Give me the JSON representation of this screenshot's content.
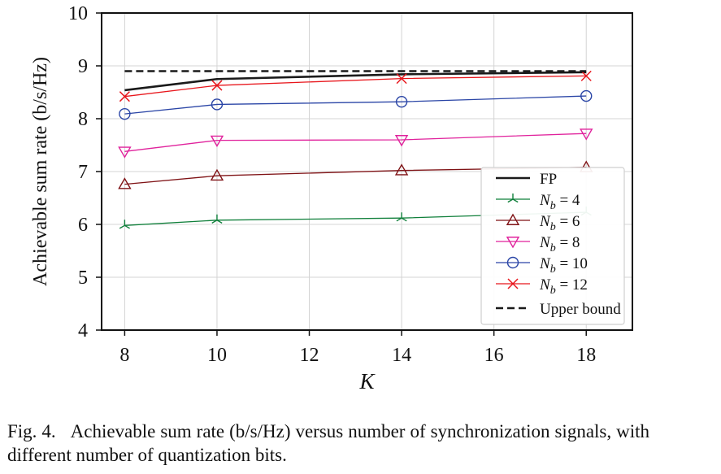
{
  "chart_data": {
    "type": "line",
    "xlabel": "K",
    "ylabel": "Achievable sum rate (b/s/Hz)",
    "xlim": [
      7.5,
      19.0
    ],
    "ylim": [
      4,
      10
    ],
    "xticks": [
      8,
      10,
      12,
      14,
      16,
      18
    ],
    "yticks": [
      4,
      5,
      6,
      7,
      8,
      9,
      10
    ],
    "grid": true,
    "legend_position": "lower-right",
    "x": [
      8,
      10,
      14,
      18
    ],
    "series": [
      {
        "name": "FP",
        "key": "fp",
        "values": [
          8.54,
          8.75,
          8.84,
          8.88
        ],
        "color": "#1a1a1a",
        "marker": "none",
        "dash": "solid",
        "width": 2.6
      },
      {
        "name": "N_b = 4",
        "key": "nb4",
        "sub": "b",
        "label_rest": " = 4",
        "values": [
          5.98,
          6.08,
          6.12,
          6.23
        ],
        "color": "#0f7f3a",
        "marker": "tri_up",
        "dash": "solid",
        "width": 1.3
      },
      {
        "name": "N_b = 6",
        "key": "nb6",
        "sub": "b",
        "label_rest": " = 6",
        "values": [
          6.76,
          6.92,
          7.02,
          7.08
        ],
        "color": "#7f1215",
        "marker": "triangle_up",
        "dash": "solid",
        "width": 1.3
      },
      {
        "name": "N_b = 8",
        "key": "nb8",
        "sub": "b",
        "label_rest": " = 8",
        "values": [
          7.38,
          7.59,
          7.6,
          7.72
        ],
        "color": "#e0229c",
        "marker": "triangle_down",
        "dash": "solid",
        "width": 1.3
      },
      {
        "name": "N_b = 10",
        "key": "nb10",
        "sub": "b",
        "label_rest": " = 10",
        "values": [
          8.09,
          8.27,
          8.32,
          8.43
        ],
        "color": "#2a45a6",
        "marker": "circle",
        "dash": "solid",
        "width": 1.3
      },
      {
        "name": "N_b = 12",
        "key": "nb12",
        "sub": "b",
        "label_rest": " = 12",
        "values": [
          8.42,
          8.63,
          8.76,
          8.81
        ],
        "color": "#e8161c",
        "marker": "x",
        "dash": "solid",
        "width": 1.3
      },
      {
        "name": "Upper bound",
        "key": "upper",
        "values": [
          8.9,
          8.9,
          8.9,
          8.9
        ],
        "color": "#1a1a1a",
        "marker": "none",
        "dash": "dashed",
        "width": 2.6
      }
    ]
  },
  "caption": {
    "fig_label": "Fig. 4.",
    "text": "Achievable sum rate (b/s/Hz) versus number of synchronization signals, with different number of quantization bits."
  }
}
